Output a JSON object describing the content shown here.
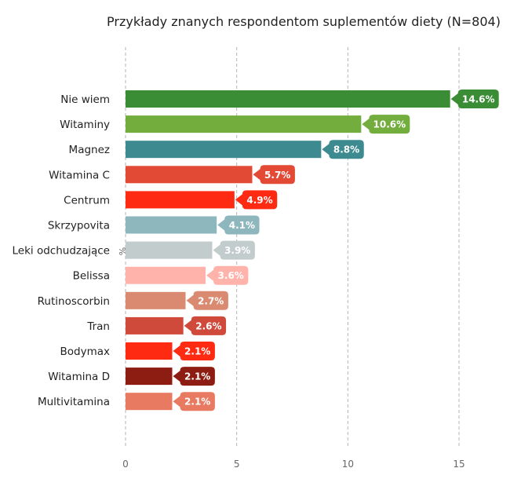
{
  "chart_data": {
    "type": "bar",
    "orientation": "horizontal",
    "title": "Przykłady znanych respondentom suplementów diety (N=804)",
    "categories": [
      "Nie wiem",
      "Witaminy",
      "Magnez",
      "Witamina C",
      "Centrum",
      "Skrzypovita",
      "Leki odchudzające",
      "Belissa",
      "Rutinoscorbin",
      "Tran",
      "Bodymax",
      "Witamina D",
      "Multivitamina"
    ],
    "values": [
      14.6,
      10.6,
      8.8,
      5.7,
      4.9,
      4.1,
      3.9,
      3.6,
      2.7,
      2.6,
      2.1,
      2.1,
      2.1
    ],
    "value_labels": [
      "14.6%",
      "10.6%",
      "8.8%",
      "5.7%",
      "4.9%",
      "4.1%",
      "3.9%",
      "3.6%",
      "2.7%",
      "2.6%",
      "2.1%",
      "2.1%",
      "2.1%"
    ],
    "colors": [
      "#3a8c35",
      "#72ad3d",
      "#3d8b91",
      "#e24a35",
      "#ff2a12",
      "#8eb6bd",
      "#c3cccd",
      "#ffb3ab",
      "#d98a70",
      "#cf4a3a",
      "#ff2a12",
      "#8d1d12",
      "#e77a60"
    ],
    "x_ticks": [
      "0",
      "5",
      "10",
      "15"
    ],
    "xlim": [
      0,
      15.5
    ],
    "axis_unit": "%",
    "grid": true,
    "legend": "none"
  }
}
